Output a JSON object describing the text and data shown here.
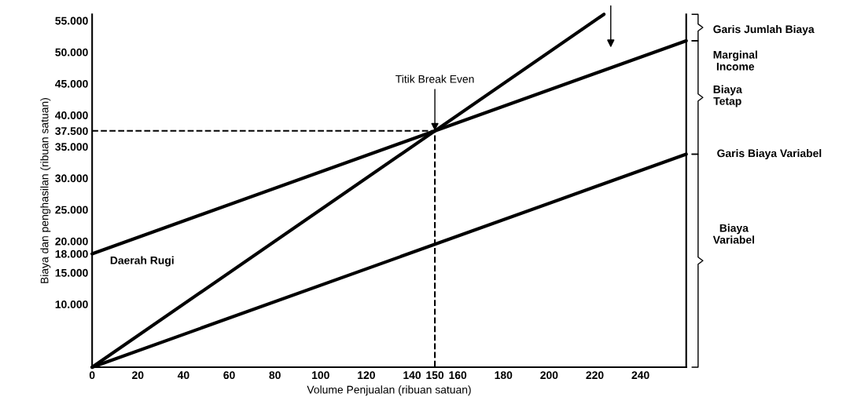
{
  "chart_data": {
    "type": "line",
    "xlabel": "Volume Penjualan (ribuan satuan)",
    "ylabel": "Biaya dan penghasilan (ribuan satuan)",
    "xlim": [
      0,
      260
    ],
    "ylim": [
      0,
      56000
    ],
    "xticks": [
      0,
      20,
      40,
      60,
      80,
      100,
      120,
      140,
      150,
      160,
      180,
      200,
      220,
      240
    ],
    "yticks": [
      {
        "value": 10000,
        "label": "10.000"
      },
      {
        "value": 15000,
        "label": "15.000"
      },
      {
        "value": 18000,
        "label": "18.000"
      },
      {
        "value": 20000,
        "label": "20.000"
      },
      {
        "value": 25000,
        "label": "25.000"
      },
      {
        "value": 30000,
        "label": "30.000"
      },
      {
        "value": 35000,
        "label": "35.000"
      },
      {
        "value": 37500,
        "label": "37.500"
      },
      {
        "value": 40000,
        "label": "40.000"
      },
      {
        "value": 45000,
        "label": "45.000"
      },
      {
        "value": 50000,
        "label": "50.000"
      },
      {
        "value": 55000,
        "label": "55.000"
      }
    ],
    "series": [
      {
        "color": "#000000",
        "x": [
          0,
          224
        ],
        "values": [
          0,
          56000
        ]
      },
      {
        "color": "#000000",
        "x": [
          0,
          260
        ],
        "values": [
          18000,
          51800
        ]
      },
      {
        "color": "#000000",
        "x": [
          0,
          260
        ],
        "values": [
          0,
          33800
        ]
      },
      {
        "color": "#000000",
        "x": [
          0,
          150,
          150
        ],
        "values": [
          37500,
          37500,
          0
        ],
        "line_style": "dashed"
      }
    ],
    "annotations": [
      {
        "text": "Titik Break Even",
        "x": 150,
        "y": 37500
      },
      "Daerah Rugi",
      "Garis Jumlah Biaya",
      "Marginal\nIncome",
      "Biaya\nTetap",
      {
        "text": "Garis Biaya Variabel",
        "x": 260,
        "y": 33800
      },
      "Biaya\nVariabel"
    ],
    "grid": false,
    "marker": "none",
    "line_style": "solid"
  }
}
